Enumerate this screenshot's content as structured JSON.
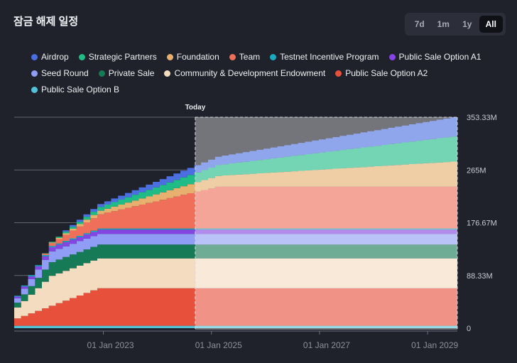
{
  "title": "잠금 해제 일정",
  "ranges": {
    "d7": "7d",
    "m1": "1m",
    "y1": "1y",
    "all": "All"
  },
  "legend": [
    {
      "name": "Airdrop",
      "color": "#4b6ee0"
    },
    {
      "name": "Strategic Partners",
      "color": "#1fbc86"
    },
    {
      "name": "Foundation",
      "color": "#e7b06e"
    },
    {
      "name": "Team",
      "color": "#ef6f5a"
    },
    {
      "name": "Testnet Incentive Program",
      "color": "#1aa9bd"
    },
    {
      "name": "Public Sale Option A1",
      "color": "#8445e3"
    },
    {
      "name": "Seed Round",
      "color": "#8f9ef4"
    },
    {
      "name": "Private Sale",
      "color": "#177a56"
    },
    {
      "name": "Community & Development Endowment",
      "color": "#f4dcc0"
    },
    {
      "name": "Public Sale Option A2",
      "color": "#e7513c"
    },
    {
      "name": "Public Sale Option B",
      "color": "#52c2d7"
    }
  ],
  "chart_data": {
    "type": "area",
    "title": "잠금 해제 일정",
    "today_label": "Today",
    "y_ticks": [
      "0",
      "88.33M",
      "176.67M",
      "265M",
      "353.33M"
    ],
    "ylim": [
      0,
      353.33
    ],
    "x_ticks": [
      "01 Jan 2023",
      "01 Jan 2025",
      "01 Jan 2027",
      "01 Jan 2029"
    ],
    "x_start_year": 2021.35,
    "x_end_year": 2029.55,
    "today_year": 2024.7,
    "unit": "M tokens",
    "stack_order": [
      "Public Sale Option B",
      "Public Sale Option A2",
      "Community & Development Endowment",
      "Private Sale",
      "Seed Round",
      "Public Sale Option A1",
      "Testnet Incentive Program",
      "Team",
      "Foundation",
      "Strategic Partners",
      "Airdrop"
    ],
    "series": [
      {
        "name": "Public Sale Option B",
        "start": 2021.35,
        "end": 2021.35,
        "initial": 4,
        "total": 4
      },
      {
        "name": "Public Sale Option A2",
        "start": 2021.35,
        "end": 2023.0,
        "initial": 8,
        "total": 63
      },
      {
        "name": "Community & Development Endowment",
        "start": 2021.35,
        "end": 2022.1,
        "initial": 12,
        "total": 50
      },
      {
        "name": "Private Sale",
        "start": 2021.35,
        "end": 2022.1,
        "initial": 5,
        "total": 23
      },
      {
        "name": "Seed Round",
        "start": 2021.35,
        "end": 2022.1,
        "initial": 5,
        "total": 18
      },
      {
        "name": "Public Sale Option A1",
        "start": 2021.35,
        "end": 2022.1,
        "initial": 2,
        "total": 7
      },
      {
        "name": "Testnet Incentive Program",
        "start": 2021.35,
        "end": 2021.7,
        "initial": 1,
        "total": 2
      },
      {
        "name": "Team",
        "start": 2021.9,
        "end": 2025.2,
        "initial": 0,
        "total": 70
      },
      {
        "name": "Foundation",
        "start": 2021.9,
        "end": 2029.55,
        "initial": 0,
        "total": 42
      },
      {
        "name": "Strategic Partners",
        "start": 2021.9,
        "end": 2029.55,
        "initial": 0,
        "total": 42
      },
      {
        "name": "Airdrop",
        "start": 2022.3,
        "end": 2029.55,
        "initial": 2,
        "total": 32
      }
    ]
  }
}
